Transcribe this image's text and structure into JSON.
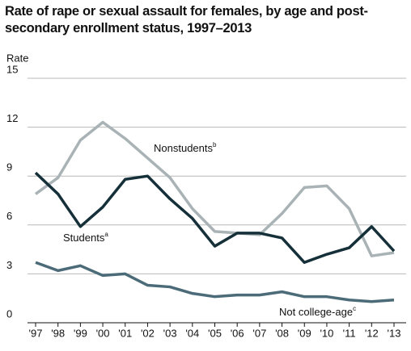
{
  "chart_data": {
    "type": "line",
    "title": "Rate of rape or sexual assault for females, by age and post-secondary enrollment status, 1997–2013",
    "y_label": "Rate",
    "categories": [
      "'97",
      "'98",
      "'99",
      "'00",
      "'01",
      "'02",
      "'03",
      "'04",
      "'05",
      "'06",
      "'07",
      "'08",
      "'09",
      "'10",
      "'11",
      "'12",
      "'13"
    ],
    "series": [
      {
        "name": "Nonstudents",
        "footnote": "b",
        "color": "#a9b3b6",
        "values": [
          7.9,
          8.9,
          11.2,
          12.3,
          11.3,
          10.1,
          8.9,
          7.0,
          5.6,
          5.5,
          5.4,
          6.7,
          8.3,
          8.4,
          7.0,
          4.1,
          4.3
        ]
      },
      {
        "name": "Students",
        "footnote": "a",
        "color": "#16303a",
        "values": [
          9.2,
          7.9,
          5.9,
          7.1,
          8.8,
          9.0,
          7.6,
          6.4,
          4.7,
          5.5,
          5.5,
          5.2,
          3.7,
          4.2,
          4.6,
          5.9,
          4.4
        ]
      },
      {
        "name": "Not college-age",
        "footnote": "c",
        "color": "#4c6b78",
        "values": [
          3.7,
          3.2,
          3.5,
          2.9,
          3.0,
          2.3,
          2.2,
          1.8,
          1.6,
          1.7,
          1.7,
          1.9,
          1.6,
          1.6,
          1.4,
          1.3,
          1.4
        ]
      }
    ],
    "ylim": [
      0,
      15
    ],
    "yticks": [
      0,
      3,
      6,
      9,
      12,
      15
    ],
    "grid": true
  }
}
